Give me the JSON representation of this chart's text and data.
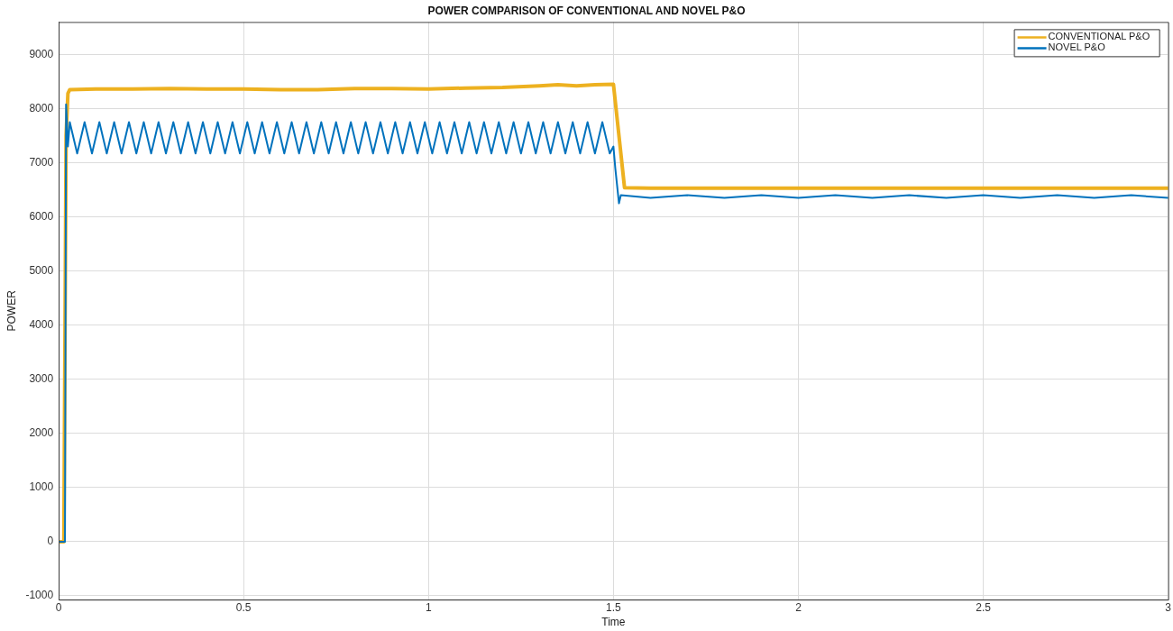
{
  "chart_data": {
    "type": "line",
    "title": "POWER COMPARISON OF CONVENTIONAL AND NOVEL P&O",
    "xlabel": "Time",
    "ylabel": "POWER",
    "xlim": [
      0,
      3
    ],
    "xticks": [
      0,
      0.5,
      1,
      1.5,
      2,
      2.5,
      3
    ],
    "ylim": [
      -1070,
      9600
    ],
    "yticks": [
      -1000,
      0,
      1000,
      2000,
      3000,
      4000,
      5000,
      6000,
      7000,
      8000,
      9000
    ],
    "grid": true,
    "legend": "top right",
    "series": [
      {
        "name": "CONVENTIONAL P&O",
        "color": "#edb120",
        "x": [
          0,
          0.014,
          0.02,
          0.025,
          0.03,
          0.1,
          0.2,
          0.3,
          0.4,
          0.5,
          0.6,
          0.7,
          0.8,
          0.9,
          1.0,
          1.1,
          1.2,
          1.3,
          1.35,
          1.4,
          1.45,
          1.5,
          1.53,
          1.6,
          2.0,
          2.5,
          3.0
        ],
        "values": [
          0,
          0,
          7500,
          8280,
          8350,
          8360,
          8360,
          8370,
          8360,
          8360,
          8350,
          8350,
          8370,
          8370,
          8360,
          8380,
          8390,
          8420,
          8440,
          8420,
          8440,
          8450,
          6540,
          6530,
          6530,
          6530,
          6530
        ]
      },
      {
        "name": "NOVEL P&O",
        "color": "#0072bd",
        "x": [
          0,
          0.017,
          0.02,
          0.025,
          0.03,
          0.05,
          0.07,
          0.09,
          0.11,
          0.13,
          0.15,
          0.17,
          0.19,
          0.21,
          0.23,
          0.25,
          0.27,
          0.29,
          0.31,
          0.33,
          0.35,
          0.37,
          0.39,
          0.41,
          0.43,
          0.45,
          0.47,
          0.49,
          0.51,
          0.53,
          0.55,
          0.57,
          0.59,
          0.61,
          0.63,
          0.65,
          0.67,
          0.69,
          0.71,
          0.73,
          0.75,
          0.77,
          0.79,
          0.81,
          0.83,
          0.85,
          0.87,
          0.89,
          0.91,
          0.93,
          0.95,
          0.97,
          0.99,
          1.01,
          1.03,
          1.05,
          1.07,
          1.09,
          1.11,
          1.13,
          1.15,
          1.17,
          1.19,
          1.21,
          1.23,
          1.25,
          1.27,
          1.29,
          1.31,
          1.33,
          1.35,
          1.37,
          1.39,
          1.41,
          1.43,
          1.45,
          1.47,
          1.49,
          1.5,
          1.505,
          1.515,
          1.52,
          1.6,
          1.7,
          1.8,
          1.9,
          2.0,
          2.1,
          2.2,
          2.3,
          2.4,
          2.5,
          2.6,
          2.7,
          2.8,
          2.9,
          3.0
        ],
        "values": [
          0,
          0,
          8080,
          7300,
          7750,
          7170,
          7750,
          7170,
          7750,
          7170,
          7750,
          7170,
          7750,
          7170,
          7750,
          7170,
          7750,
          7170,
          7750,
          7170,
          7750,
          7170,
          7750,
          7170,
          7750,
          7170,
          7750,
          7170,
          7750,
          7170,
          7750,
          7170,
          7750,
          7170,
          7750,
          7170,
          7750,
          7170,
          7750,
          7170,
          7750,
          7170,
          7750,
          7170,
          7750,
          7170,
          7750,
          7170,
          7750,
          7170,
          7750,
          7170,
          7750,
          7170,
          7750,
          7170,
          7750,
          7170,
          7750,
          7170,
          7750,
          7170,
          7750,
          7170,
          7750,
          7170,
          7750,
          7170,
          7750,
          7170,
          7750,
          7170,
          7750,
          7170,
          7750,
          7170,
          7750,
          7170,
          7300,
          6900,
          6250,
          6400,
          6350,
          6400,
          6350,
          6400,
          6350,
          6400,
          6350,
          6400,
          6350,
          6400,
          6350,
          6400,
          6350,
          6400,
          6350
        ]
      }
    ]
  }
}
